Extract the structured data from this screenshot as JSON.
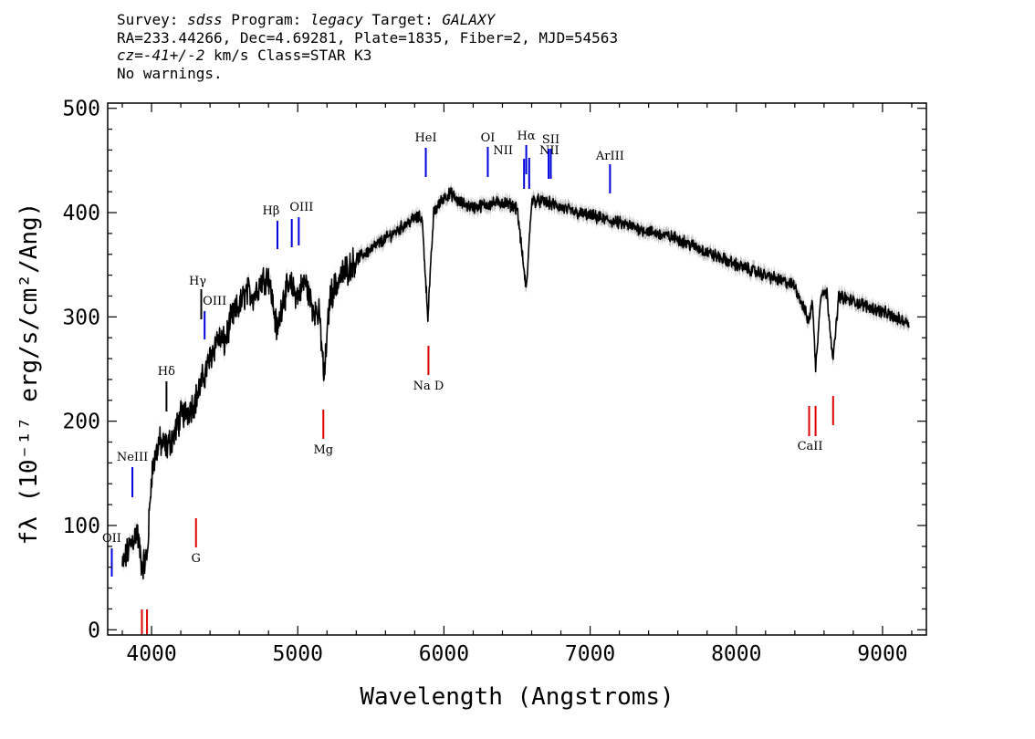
{
  "header": {
    "l1_a": "Survey: ",
    "l1_survey": "sdss",
    "l1_b": " Program: ",
    "l1_program": "legacy",
    "l1_c": " Target: ",
    "l1_target": "GALAXY",
    "l2": "RA=233.44266, Dec=4.69281, Plate=1835, Fiber=2, MJD=54563",
    "l3_cz": "cz=-41+/-2",
    "l3_rest": " km/s Class=STAR K3",
    "l4": "No warnings."
  },
  "chart_data": {
    "type": "line",
    "xlabel": "Wavelength (Angstroms)",
    "ylabel": "fλ (10⁻¹⁷ erg/s/cm²/Ang)",
    "xlim": [
      3700,
      9300
    ],
    "ylim": [
      -5,
      505
    ],
    "xticks": [
      4000,
      5000,
      6000,
      7000,
      8000,
      9000
    ],
    "yticks": [
      0,
      100,
      200,
      300,
      400,
      500
    ],
    "grid": false,
    "colors": {
      "flux": "#000000",
      "error": "#bbbbbb",
      "emission": "#0000dd",
      "absorption": "#dd0000"
    },
    "series": [
      {
        "x": [
          3800,
          3850,
          3900,
          3935,
          3970,
          4000,
          4050,
          4100,
          4150,
          4200,
          4250,
          4300,
          4350,
          4400,
          4450,
          4500,
          4550,
          4600,
          4650,
          4700,
          4750,
          4800,
          4860,
          4900,
          4950,
          5000,
          5050,
          5100,
          5150,
          5180,
          5220,
          5300,
          5400,
          5500,
          5600,
          5700,
          5800,
          5850,
          5890,
          5930,
          6000,
          6050,
          6100,
          6200,
          6300,
          6400,
          6500,
          6563,
          6600,
          6700,
          6800,
          6900,
          7000,
          7200,
          7400,
          7600,
          7800,
          8000,
          8200,
          8400,
          8498,
          8520,
          8542,
          8580,
          8620,
          8662,
          8700,
          8800,
          8900,
          9000,
          9100,
          9180
        ],
        "y": [
          60,
          80,
          95,
          60,
          70,
          150,
          180,
          175,
          185,
          205,
          210,
          220,
          240,
          260,
          280,
          275,
          300,
          310,
          325,
          320,
          335,
          340,
          285,
          320,
          330,
          320,
          335,
          310,
          300,
          240,
          320,
          340,
          355,
          365,
          375,
          385,
          395,
          395,
          300,
          400,
          415,
          418,
          410,
          405,
          408,
          410,
          405,
          325,
          412,
          410,
          405,
          400,
          397,
          390,
          382,
          375,
          362,
          350,
          340,
          330,
          295,
          318,
          250,
          325,
          322,
          258,
          320,
          315,
          310,
          305,
          298,
          295
        ]
      }
    ],
    "emission_lines": [
      {
        "label": "OII",
        "x": 3728
      },
      {
        "label": "NeIII",
        "x": 3869
      },
      {
        "label": "Hδ",
        "x": 4102
      },
      {
        "label": "Hγ",
        "x": 4340
      },
      {
        "label": "OIII",
        "x": 4363
      },
      {
        "label": "Hβ",
        "x": 4861
      },
      {
        "label": "OIII",
        "x": 4959
      },
      {
        "label": "OIII",
        "x": 5007
      },
      {
        "label": "HeI",
        "x": 5876
      },
      {
        "label": "OI",
        "x": 6300
      },
      {
        "label": "NII",
        "x": 6548
      },
      {
        "label": "Hα",
        "x": 6563
      },
      {
        "label": "NII",
        "x": 6583
      },
      {
        "label": "SII",
        "x": 6716
      },
      {
        "label": "SII",
        "x": 6731
      },
      {
        "label": "ArIII",
        "x": 7136
      }
    ],
    "absorption_lines": [
      {
        "label": "",
        "x": 3934
      },
      {
        "label": "",
        "x": 3969
      },
      {
        "label": "G",
        "x": 4304
      },
      {
        "label": "Mg",
        "x": 5175
      },
      {
        "label": "Na D",
        "x": 5894
      },
      {
        "label": "",
        "x": 8498
      },
      {
        "label": "CaII",
        "x": 8542
      },
      {
        "label": "",
        "x": 8662
      }
    ]
  }
}
